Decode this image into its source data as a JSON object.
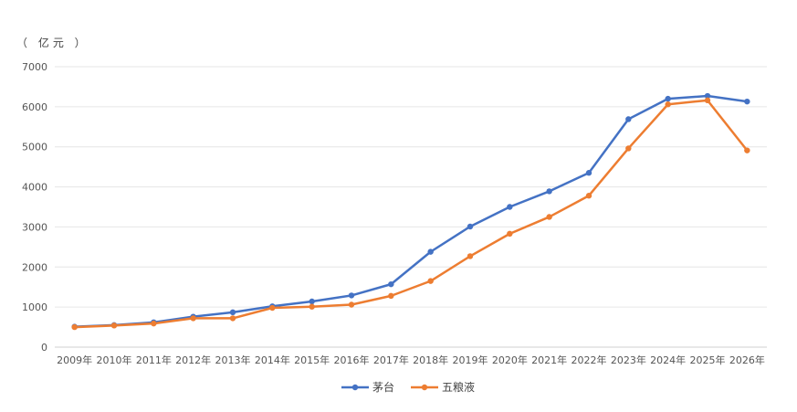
{
  "chart_data": {
    "type": "line",
    "unit_label": "（ 亿元 ）",
    "categories": [
      "2009年",
      "2010年",
      "2011年",
      "2012年",
      "2013年",
      "2014年",
      "2015年",
      "2016年",
      "2017年",
      "2018年",
      "2019年",
      "2020年",
      "2021年",
      "2022年",
      "2023年",
      "2024年",
      "2025年",
      "2026年"
    ],
    "yticks": [
      "0",
      "1000",
      "2000",
      "3000",
      "4000",
      "5000",
      "6000",
      "7000"
    ],
    "ylim": [
      0,
      7000
    ],
    "grid": true,
    "legend_position": "bottom",
    "series": [
      {
        "name": "茅台",
        "color": "#4472c4",
        "values": [
          510,
          550,
          620,
          760,
          870,
          1020,
          1140,
          1290,
          1570,
          2380,
          3010,
          3500,
          3890,
          4350,
          5690,
          6200,
          6270,
          6130
        ]
      },
      {
        "name": "五粮液",
        "color": "#ed7d31",
        "values": [
          500,
          540,
          590,
          720,
          720,
          980,
          1010,
          1060,
          1280,
          1650,
          2270,
          2830,
          3250,
          3780,
          4960,
          6060,
          6160,
          4910
        ]
      }
    ]
  }
}
